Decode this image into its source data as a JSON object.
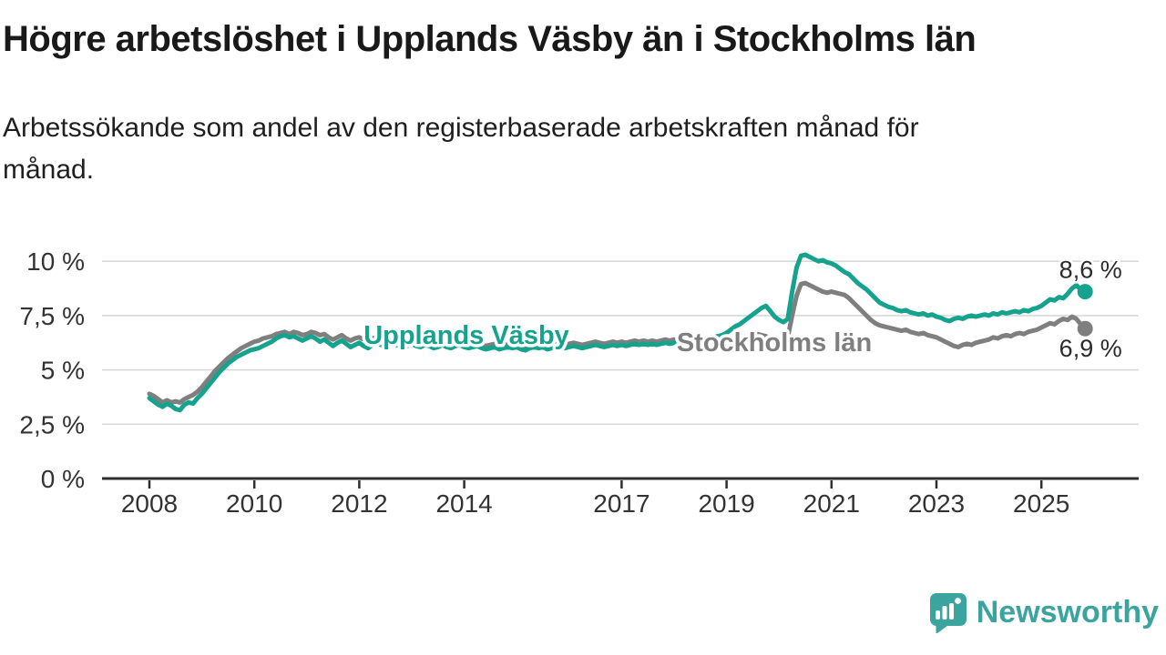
{
  "header": {
    "title": "Högre arbetslöshet i Upplands Väsby än i Stockholms län",
    "subtitle": "Arbetssökande som andel av den registerbaserade arbetskraften månad för\nmånad."
  },
  "branding": {
    "logo_text": "Newsworthy",
    "logo_color": "#3ba49e",
    "logo_icon": "speech-bubble-bar-chart-icon"
  },
  "chart_data": {
    "type": "line",
    "title": "Högre arbetslöshet i Upplands Väsby än i Stockholms län",
    "subtitle": "Arbetssökande som andel av den registerbaserade arbetskraften månad för månad.",
    "x_unit": "month",
    "x_start": "2008-01",
    "x_end": "2025-11",
    "ylim": [
      0,
      10.8
    ],
    "grid": "horizontal",
    "legend_position": "inline-labels",
    "yticks": [
      {
        "value": 10,
        "label": "10 %"
      },
      {
        "value": 7.5,
        "label": "7,5 %"
      },
      {
        "value": 5,
        "label": "5 %"
      },
      {
        "value": 2.5,
        "label": "2,5 %"
      },
      {
        "value": 0,
        "label": "0 %"
      }
    ],
    "xticks": [
      {
        "value": 2008,
        "label": "2008"
      },
      {
        "value": 2010,
        "label": "2010"
      },
      {
        "value": 2012,
        "label": "2012"
      },
      {
        "value": 2014,
        "label": "2014"
      },
      {
        "value": 2017,
        "label": "2017"
      },
      {
        "value": 2019,
        "label": "2019"
      },
      {
        "value": 2021,
        "label": "2021"
      },
      {
        "value": 2023,
        "label": "2023"
      },
      {
        "value": 2025,
        "label": "2025"
      }
    ],
    "series": [
      {
        "name": "Stockholms län",
        "color": "#7f7f7f",
        "end_value": 6.9,
        "end_label": "6,9 %",
        "values": [
          3.9,
          3.8,
          3.65,
          3.5,
          3.6,
          3.5,
          3.55,
          3.5,
          3.65,
          3.75,
          3.85,
          4.0,
          4.2,
          4.45,
          4.7,
          4.95,
          5.15,
          5.35,
          5.55,
          5.7,
          5.85,
          6.0,
          6.1,
          6.2,
          6.3,
          6.35,
          6.45,
          6.5,
          6.55,
          6.65,
          6.7,
          6.75,
          6.65,
          6.75,
          6.7,
          6.6,
          6.65,
          6.75,
          6.7,
          6.6,
          6.65,
          6.5,
          6.4,
          6.5,
          6.6,
          6.45,
          6.35,
          6.45,
          6.5,
          6.4,
          6.3,
          6.45,
          6.5,
          6.4,
          6.3,
          6.4,
          6.45,
          6.35,
          6.25,
          6.35,
          6.4,
          6.3,
          6.25,
          6.35,
          6.3,
          6.2,
          6.25,
          6.3,
          6.2,
          6.15,
          6.25,
          6.3,
          6.2,
          6.15,
          6.2,
          6.25,
          6.15,
          6.1,
          6.15,
          6.2,
          6.1,
          6.15,
          6.2,
          6.15,
          6.2,
          6.1,
          6.05,
          6.15,
          6.2,
          6.15,
          6.2,
          6.1,
          6.15,
          6.25,
          6.2,
          6.15,
          6.2,
          6.25,
          6.2,
          6.15,
          6.2,
          6.25,
          6.3,
          6.25,
          6.2,
          6.25,
          6.3,
          6.25,
          6.3,
          6.25,
          6.3,
          6.35,
          6.3,
          6.35,
          6.3,
          6.35,
          6.3,
          6.35,
          6.4,
          6.35,
          6.4,
          6.35,
          6.4,
          6.45,
          6.4,
          6.35,
          6.4,
          6.45,
          6.4,
          6.45,
          6.5,
          6.45,
          6.5,
          6.45,
          6.5,
          6.55,
          6.5,
          6.55,
          6.6,
          6.65,
          6.6,
          6.55,
          6.45,
          6.4,
          6.45,
          6.4,
          6.5,
          7.5,
          8.4,
          8.95,
          9.0,
          8.9,
          8.8,
          8.7,
          8.6,
          8.55,
          8.6,
          8.55,
          8.5,
          8.45,
          8.3,
          8.1,
          7.9,
          7.7,
          7.5,
          7.3,
          7.15,
          7.05,
          7.0,
          6.95,
          6.9,
          6.85,
          6.8,
          6.85,
          6.75,
          6.7,
          6.65,
          6.7,
          6.6,
          6.55,
          6.5,
          6.4,
          6.3,
          6.2,
          6.1,
          6.05,
          6.15,
          6.2,
          6.15,
          6.25,
          6.3,
          6.35,
          6.4,
          6.5,
          6.45,
          6.55,
          6.6,
          6.55,
          6.65,
          6.7,
          6.65,
          6.75,
          6.8,
          6.85,
          6.95,
          7.05,
          7.15,
          7.1,
          7.25,
          7.35,
          7.3,
          7.45,
          7.35,
          7.1,
          6.9
        ]
      },
      {
        "name": "Upplands Väsby",
        "color": "#16a38e",
        "end_value": 8.6,
        "end_label": "8,6 %",
        "values": [
          3.7,
          3.55,
          3.4,
          3.3,
          3.45,
          3.35,
          3.2,
          3.15,
          3.4,
          3.5,
          3.45,
          3.7,
          3.9,
          4.15,
          4.4,
          4.65,
          4.9,
          5.1,
          5.3,
          5.45,
          5.6,
          5.7,
          5.8,
          5.9,
          5.95,
          6.0,
          6.1,
          6.2,
          6.3,
          6.45,
          6.55,
          6.6,
          6.5,
          6.55,
          6.45,
          6.35,
          6.45,
          6.55,
          6.45,
          6.3,
          6.4,
          6.25,
          6.1,
          6.25,
          6.35,
          6.2,
          6.05,
          6.15,
          6.25,
          6.1,
          6.0,
          6.15,
          6.25,
          6.15,
          6.05,
          6.15,
          6.2,
          6.1,
          6.05,
          6.1,
          6.2,
          6.1,
          6.05,
          6.15,
          6.1,
          6.0,
          6.05,
          6.15,
          6.05,
          6.0,
          6.1,
          6.15,
          6.05,
          6.0,
          6.05,
          6.1,
          6.0,
          5.95,
          6.0,
          6.05,
          5.95,
          6.0,
          6.05,
          6.0,
          6.05,
          5.95,
          5.9,
          6.0,
          6.05,
          6.0,
          6.05,
          5.95,
          6.0,
          6.1,
          6.05,
          6.0,
          6.05,
          6.1,
          6.05,
          6.0,
          6.05,
          6.1,
          6.15,
          6.1,
          6.05,
          6.1,
          6.15,
          6.1,
          6.15,
          6.1,
          6.15,
          6.2,
          6.15,
          6.2,
          6.15,
          6.2,
          6.15,
          6.2,
          6.25,
          6.2,
          6.25,
          6.3,
          6.25,
          6.3,
          6.35,
          6.3,
          6.35,
          6.4,
          6.45,
          6.5,
          6.55,
          6.6,
          6.7,
          6.85,
          7.0,
          7.1,
          7.25,
          7.4,
          7.55,
          7.7,
          7.85,
          7.95,
          7.7,
          7.45,
          7.3,
          7.2,
          7.35,
          8.6,
          9.7,
          10.25,
          10.3,
          10.2,
          10.1,
          10.0,
          10.05,
          9.95,
          9.9,
          9.8,
          9.65,
          9.5,
          9.4,
          9.2,
          9.0,
          8.85,
          8.7,
          8.5,
          8.3,
          8.1,
          8.0,
          7.9,
          7.85,
          7.75,
          7.7,
          7.75,
          7.65,
          7.6,
          7.55,
          7.6,
          7.5,
          7.55,
          7.45,
          7.4,
          7.3,
          7.25,
          7.35,
          7.4,
          7.35,
          7.45,
          7.5,
          7.45,
          7.5,
          7.55,
          7.5,
          7.6,
          7.55,
          7.65,
          7.6,
          7.65,
          7.7,
          7.65,
          7.75,
          7.7,
          7.8,
          7.85,
          7.95,
          8.1,
          8.25,
          8.2,
          8.35,
          8.3,
          8.5,
          8.75,
          8.9,
          8.7,
          8.6
        ]
      }
    ],
    "colors": {
      "grid": "#d9d9d9",
      "axis": "#2e2e2e",
      "tick_text": "#333333",
      "value_label_text": "#2b2b2b"
    }
  }
}
